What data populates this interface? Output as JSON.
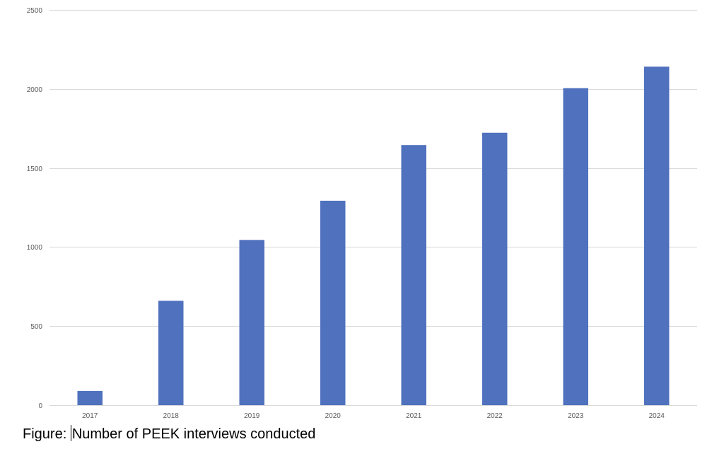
{
  "chart_data": {
    "type": "bar",
    "title": "",
    "xlabel": "",
    "ylabel": "",
    "categories": [
      "2017",
      "2018",
      "2019",
      "2020",
      "2021",
      "2022",
      "2023",
      "2024"
    ],
    "values": [
      90,
      660,
      1045,
      1293,
      1645,
      1723,
      2005,
      2141
    ],
    "ylim": [
      0,
      2500
    ],
    "yticks": [
      0,
      500,
      1000,
      1500,
      2000,
      2500
    ],
    "grid": true,
    "legend": "none",
    "bar_color": "#4F71BE",
    "grid_color": "#D9D9D9"
  },
  "caption": {
    "prefix": "Figure: ",
    "text": "Number of PEEK interviews conducted"
  }
}
